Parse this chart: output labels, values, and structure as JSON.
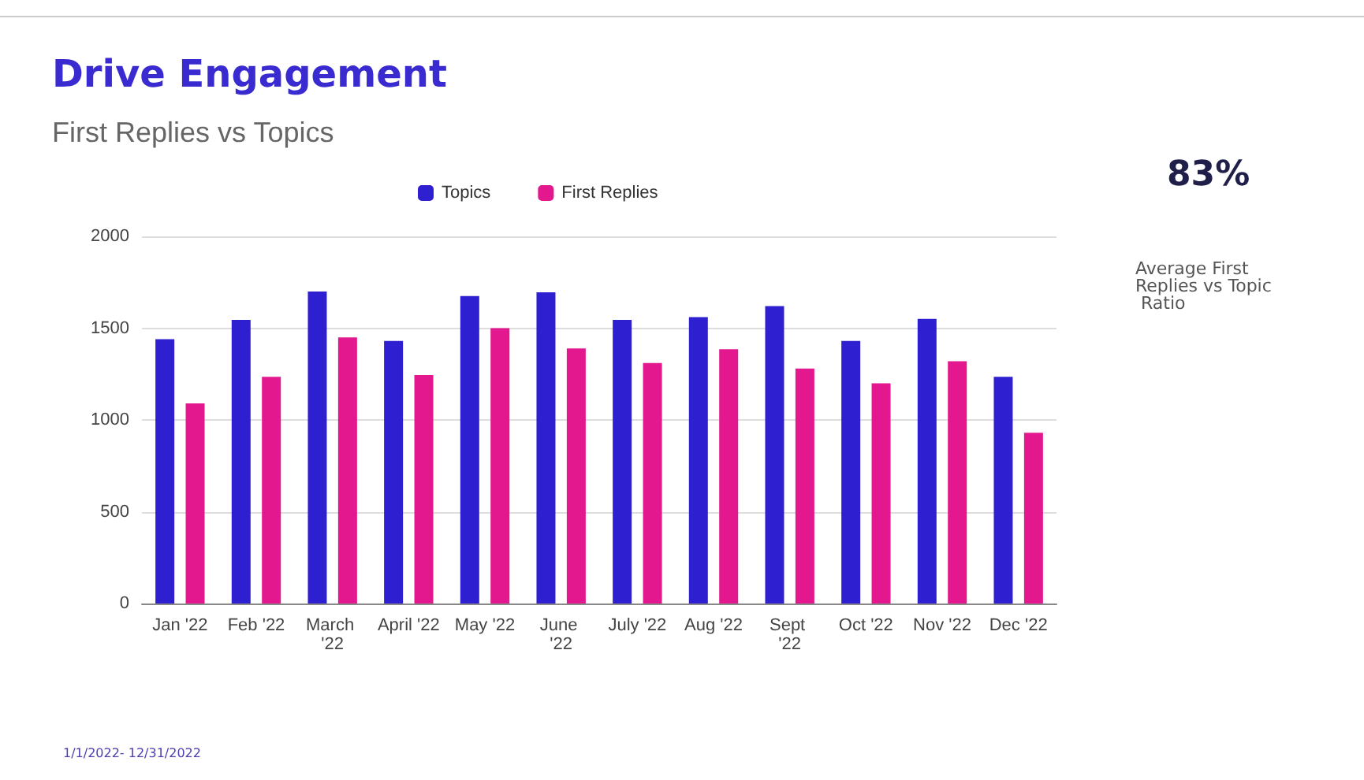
{
  "chart_data": {
    "type": "bar",
    "title": "Drive Engagement",
    "subtitle": "First Replies vs Topics",
    "categories": [
      "Jan '22",
      "Feb '22",
      "March '22",
      "April '22",
      "May '22",
      "June '22",
      "July '22",
      "Aug '22",
      "Sept '22",
      "Oct '22",
      "Nov '22",
      "Dec '22"
    ],
    "series": [
      {
        "name": "Topics",
        "color": "#2e1fd0",
        "values": [
          1440,
          1545,
          1700,
          1430,
          1675,
          1695,
          1545,
          1560,
          1620,
          1430,
          1550,
          1235
        ]
      },
      {
        "name": "First Replies",
        "color": "#e3188f",
        "values": [
          1090,
          1235,
          1450,
          1245,
          1500,
          1390,
          1310,
          1385,
          1280,
          1200,
          1320,
          930
        ]
      }
    ],
    "ylim": [
      0,
      2000
    ],
    "yticks": [
      0,
      500,
      1000,
      1500,
      2000
    ],
    "grid": "y",
    "legend": "top",
    "annotations": [
      "83%",
      "Average First Replies vs Topic Ratio",
      "1/1/2022- 12/31/2022"
    ]
  }
}
